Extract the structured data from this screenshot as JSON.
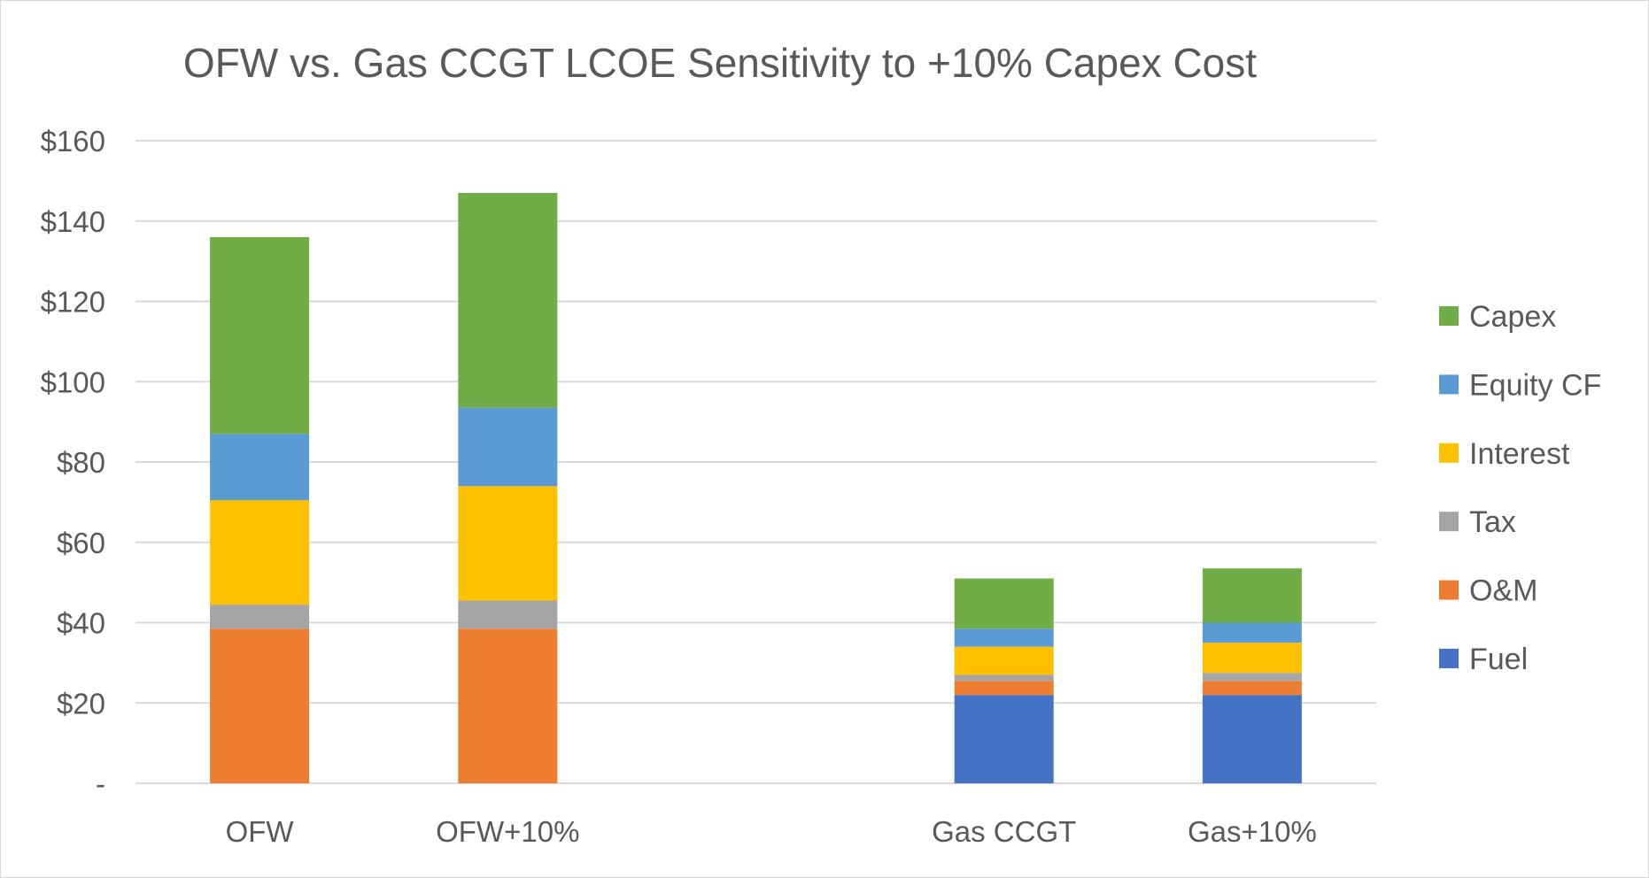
{
  "chart_data": {
    "type": "bar",
    "stacked": true,
    "title": "OFW vs. Gas CCGT LCOE Sensitivity to +10% Capex Cost",
    "xlabel": "",
    "ylabel": "",
    "ylim": [
      0,
      160
    ],
    "y_tick_values": [
      0,
      20,
      40,
      60,
      80,
      100,
      120,
      140,
      160
    ],
    "y_tick_labels": [
      "-",
      "$20",
      "$40",
      "$60",
      "$80",
      "$100",
      "$120",
      "$140",
      "$160"
    ],
    "grid": true,
    "legend_position": "right",
    "categories": [
      "OFW",
      "OFW+10%",
      "Gas CCGT",
      "Gas+10%"
    ],
    "category_slots": [
      0,
      1,
      3,
      4
    ],
    "series": [
      {
        "name": "Fuel",
        "color": "#4472C4",
        "values": [
          0,
          0,
          22,
          22
        ]
      },
      {
        "name": "O&M",
        "color": "#ED7D31",
        "values": [
          38.5,
          38.5,
          3.5,
          3.5
        ]
      },
      {
        "name": "Tax",
        "color": "#A5A5A5",
        "values": [
          6,
          7,
          1.5,
          2
        ]
      },
      {
        "name": "Interest",
        "color": "#FFC000",
        "values": [
          26,
          28.5,
          7,
          7.5
        ]
      },
      {
        "name": "Equity CF",
        "color": "#5B9BD5",
        "values": [
          16.5,
          19.5,
          4.5,
          5
        ]
      },
      {
        "name": "Capex",
        "color": "#70AD47",
        "values": [
          49,
          53.5,
          12.5,
          13.5
        ]
      }
    ]
  }
}
